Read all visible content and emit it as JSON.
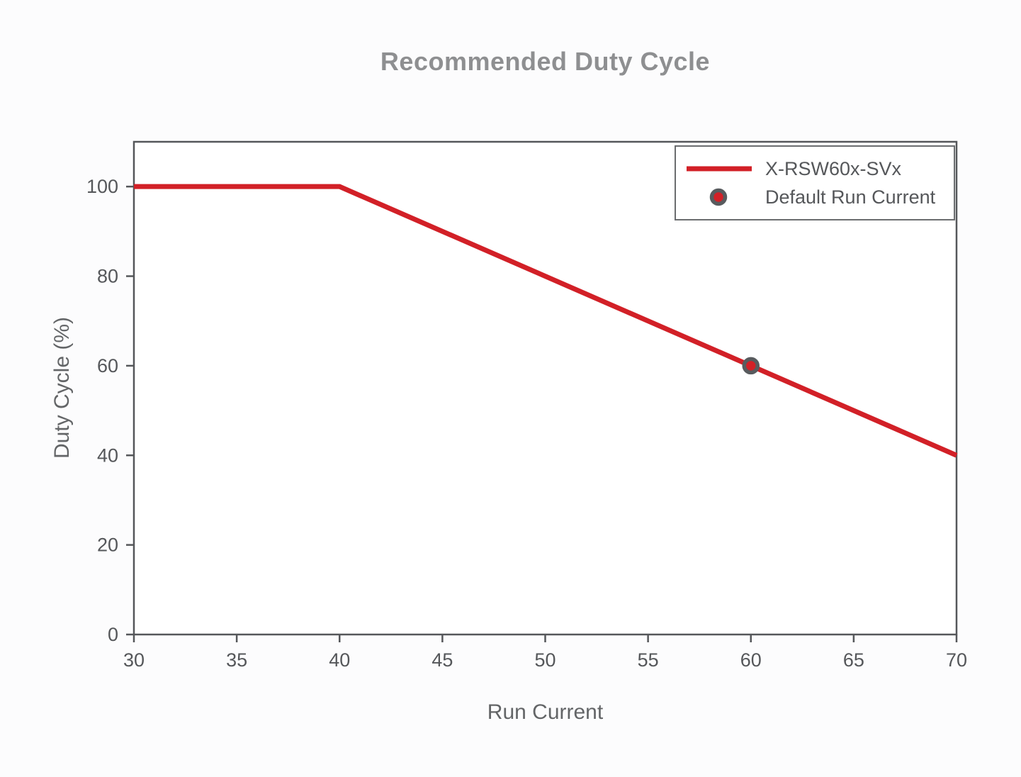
{
  "chart_data": {
    "type": "line",
    "title": "Recommended Duty Cycle",
    "xlabel": "Run Current",
    "ylabel": "Duty Cycle (%)",
    "xlim": [
      30,
      70
    ],
    "ylim": [
      0,
      110
    ],
    "xticks": [
      30,
      35,
      40,
      45,
      50,
      55,
      60,
      65,
      70
    ],
    "yticks": [
      0,
      20,
      40,
      60,
      80,
      100
    ],
    "grid": true,
    "legend_position": "top-right",
    "series": [
      {
        "name": "X-RSW60x-SVx",
        "type": "line",
        "color": "#d22027",
        "line_width": 7,
        "x": [
          30,
          40,
          70
        ],
        "y": [
          100,
          100,
          40
        ]
      },
      {
        "name": "Default Run Current",
        "type": "scatter",
        "color": "#d22027",
        "edge_color": "#585b5e",
        "x": [
          60
        ],
        "y": [
          60
        ]
      }
    ]
  }
}
